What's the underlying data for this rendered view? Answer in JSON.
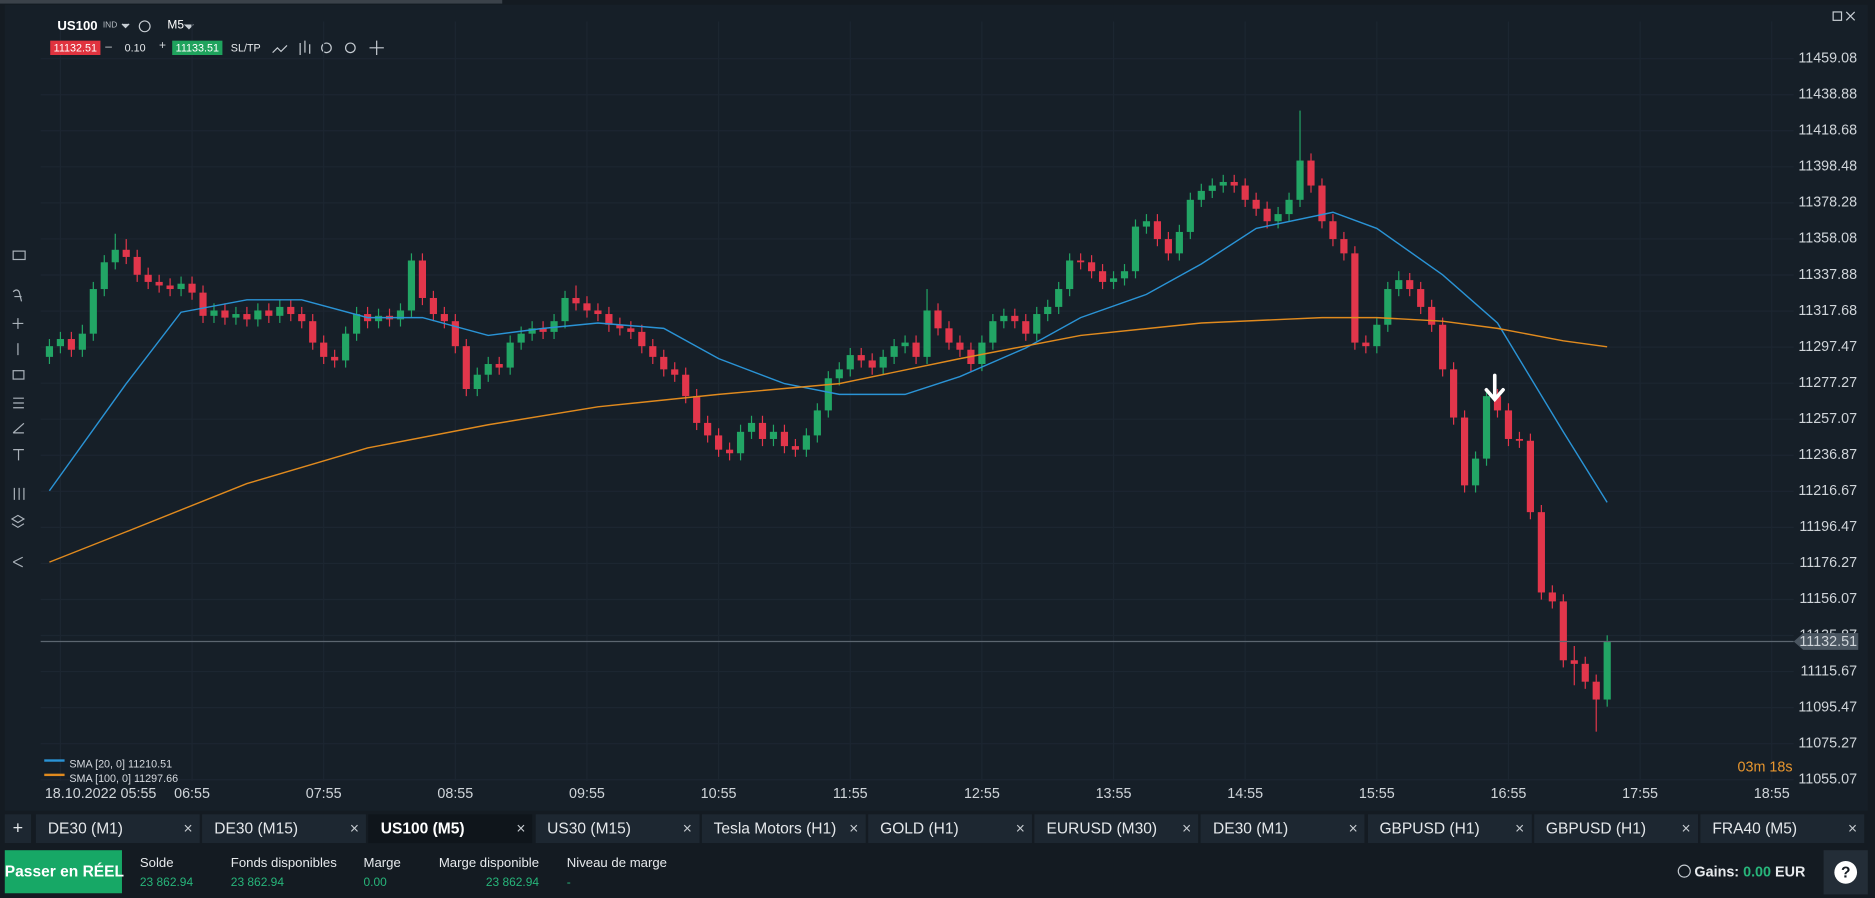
{
  "header": {
    "instrument": "US100",
    "instrument_type": "IND",
    "timeframe": "M5",
    "bid": "11132.51",
    "minus": "–",
    "lot": "0.10",
    "plus": "+",
    "ask": "11133.51",
    "sl_tp": "SL/TP"
  },
  "chart_data": {
    "type": "candlestick",
    "up_color": "#22a565",
    "down_color": "#e2364b",
    "x": [
      -5,
      0,
      5,
      10,
      15,
      20,
      25,
      30,
      35,
      40,
      45,
      50,
      55,
      60,
      65,
      70,
      75,
      80,
      85,
      90,
      95,
      100,
      105,
      110,
      115,
      120,
      125,
      130,
      135,
      140,
      145,
      150,
      155,
      160,
      165,
      170,
      175,
      180,
      185,
      190,
      195,
      200,
      205,
      210,
      215,
      220,
      225,
      230,
      235,
      240,
      245,
      250,
      255,
      260,
      265,
      270,
      275,
      280,
      285,
      290,
      295,
      300,
      305,
      310,
      315,
      320,
      325,
      330,
      335,
      340,
      345,
      350,
      355,
      360,
      365,
      370,
      375,
      380,
      385,
      390,
      395,
      400,
      405,
      410,
      415,
      420,
      425,
      430,
      435,
      440,
      445,
      450,
      455,
      460,
      465,
      470,
      475,
      480,
      485,
      490,
      495,
      500,
      505,
      510,
      515,
      520,
      525,
      530,
      535,
      540,
      545,
      550,
      555,
      560,
      565,
      570,
      575,
      580,
      585,
      590,
      595,
      600,
      605,
      610,
      615,
      620,
      625,
      630,
      635,
      640,
      645,
      650,
      655,
      660,
      665,
      670,
      675,
      680,
      685,
      690,
      695,
      700,
      705
    ],
    "ohlc": [
      [
        11292,
        11302,
        11288,
        11298
      ],
      [
        11298,
        11306,
        11294,
        11302
      ],
      [
        11302,
        11306,
        11292,
        11296
      ],
      [
        11296,
        11310,
        11292,
        11305
      ],
      [
        11305,
        11334,
        11301,
        11330
      ],
      [
        11330,
        11349,
        11326,
        11345
      ],
      [
        11345,
        11361,
        11341,
        11352
      ],
      [
        11352,
        11358,
        11344,
        11348
      ],
      [
        11348,
        11352,
        11334,
        11338
      ],
      [
        11338,
        11342,
        11330,
        11334
      ],
      [
        11334,
        11338,
        11328,
        11332
      ],
      [
        11332,
        11336,
        11326,
        11330
      ],
      [
        11330,
        11337,
        11326,
        11333
      ],
      [
        11333,
        11337,
        11324,
        11328
      ],
      [
        11328,
        11332,
        11311,
        11315
      ],
      [
        11315,
        11322,
        11311,
        11318
      ],
      [
        11318,
        11322,
        11310,
        11314
      ],
      [
        11314,
        11320,
        11310,
        11316
      ],
      [
        11316,
        11320,
        11309,
        11313
      ],
      [
        11313,
        11322,
        11309,
        11318
      ],
      [
        11318,
        11322,
        11311,
        11315
      ],
      [
        11315,
        11324,
        11311,
        11320
      ],
      [
        11320,
        11324,
        11312,
        11316
      ],
      [
        11316,
        11320,
        11308,
        11312
      ],
      [
        11312,
        11316,
        11296,
        11300
      ],
      [
        11300,
        11304,
        11288,
        11292
      ],
      [
        11292,
        11296,
        11286,
        11290
      ],
      [
        11290,
        11309,
        11286,
        11305
      ],
      [
        11305,
        11320,
        11301,
        11316
      ],
      [
        11316,
        11320,
        11308,
        11312
      ],
      [
        11312,
        11319,
        11308,
        11315
      ],
      [
        11315,
        11319,
        11309,
        11313
      ],
      [
        11313,
        11322,
        11309,
        11318
      ],
      [
        11318,
        11350,
        11314,
        11346
      ],
      [
        11346,
        11350,
        11321,
        11325
      ],
      [
        11325,
        11329,
        11312,
        11316
      ],
      [
        11316,
        11320,
        11308,
        11312
      ],
      [
        11312,
        11316,
        11294,
        11298
      ],
      [
        11298,
        11302,
        11270,
        11274
      ],
      [
        11274,
        11286,
        11270,
        11282
      ],
      [
        11282,
        11292,
        11278,
        11288
      ],
      [
        11288,
        11292,
        11282,
        11286
      ],
      [
        11286,
        11304,
        11282,
        11300
      ],
      [
        11300,
        11309,
        11296,
        11305
      ],
      [
        11305,
        11312,
        11301,
        11308
      ],
      [
        11308,
        11312,
        11302,
        11306
      ],
      [
        11306,
        11316,
        11302,
        11312
      ],
      [
        11312,
        11329,
        11308,
        11325
      ],
      [
        11325,
        11332,
        11318,
        11322
      ],
      [
        11322,
        11326,
        11314,
        11318
      ],
      [
        11318,
        11322,
        11312,
        11316
      ],
      [
        11316,
        11320,
        11306,
        11310
      ],
      [
        11310,
        11314,
        11304,
        11308
      ],
      [
        11308,
        11312,
        11302,
        11306
      ],
      [
        11306,
        11310,
        11294,
        11298
      ],
      [
        11298,
        11302,
        11288,
        11292
      ],
      [
        11292,
        11296,
        11281,
        11285
      ],
      [
        11285,
        11289,
        11278,
        11282
      ],
      [
        11282,
        11286,
        11266,
        11270
      ],
      [
        11270,
        11274,
        11251,
        11255
      ],
      [
        11255,
        11259,
        11244,
        11248
      ],
      [
        11248,
        11252,
        11236,
        11240
      ],
      [
        11240,
        11244,
        11234,
        11238
      ],
      [
        11238,
        11254,
        11234,
        11250
      ],
      [
        11250,
        11259,
        11246,
        11255
      ],
      [
        11255,
        11259,
        11242,
        11246
      ],
      [
        11246,
        11254,
        11242,
        11250
      ],
      [
        11250,
        11254,
        11238,
        11242
      ],
      [
        11242,
        11246,
        11236,
        11240
      ],
      [
        11240,
        11252,
        11236,
        11248
      ],
      [
        11248,
        11266,
        11244,
        11262
      ],
      [
        11262,
        11284,
        11258,
        11280
      ],
      [
        11280,
        11289,
        11276,
        11285
      ],
      [
        11285,
        11297,
        11281,
        11293
      ],
      [
        11293,
        11297,
        11286,
        11290
      ],
      [
        11290,
        11294,
        11282,
        11286
      ],
      [
        11286,
        11296,
        11282,
        11292
      ],
      [
        11292,
        11302,
        11288,
        11298
      ],
      [
        11298,
        11304,
        11294,
        11300
      ],
      [
        11300,
        11304,
        11288,
        11292
      ],
      [
        11292,
        11330,
        11288,
        11318
      ],
      [
        11318,
        11322,
        11304,
        11308
      ],
      [
        11308,
        11312,
        11296,
        11300
      ],
      [
        11300,
        11304,
        11292,
        11296
      ],
      [
        11296,
        11300,
        11284,
        11288
      ],
      [
        11288,
        11304,
        11284,
        11300
      ],
      [
        11300,
        11316,
        11296,
        11312
      ],
      [
        11312,
        11319,
        11308,
        11315
      ],
      [
        11315,
        11319,
        11308,
        11312
      ],
      [
        11312,
        11316,
        11301,
        11305
      ],
      [
        11305,
        11320,
        11301,
        11316
      ],
      [
        11316,
        11324,
        11312,
        11320
      ],
      [
        11320,
        11334,
        11316,
        11330
      ],
      [
        11330,
        11350,
        11326,
        11346
      ],
      [
        11346,
        11350,
        11341,
        11345
      ],
      [
        11345,
        11349,
        11336,
        11340
      ],
      [
        11340,
        11344,
        11330,
        11334
      ],
      [
        11334,
        11340,
        11330,
        11336
      ],
      [
        11336,
        11344,
        11332,
        11340
      ],
      [
        11340,
        11369,
        11336,
        11365
      ],
      [
        11365,
        11372,
        11361,
        11368
      ],
      [
        11368,
        11372,
        11354,
        11358
      ],
      [
        11358,
        11362,
        11346,
        11350
      ],
      [
        11350,
        11366,
        11346,
        11362
      ],
      [
        11362,
        11384,
        11358,
        11380
      ],
      [
        11380,
        11389,
        11376,
        11385
      ],
      [
        11385,
        11392,
        11381,
        11388
      ],
      [
        11388,
        11394,
        11384,
        11390
      ],
      [
        11390,
        11394,
        11384,
        11388
      ],
      [
        11388,
        11392,
        11376,
        11380
      ],
      [
        11380,
        11384,
        11371,
        11375
      ],
      [
        11375,
        11379,
        11364,
        11368
      ],
      [
        11368,
        11376,
        11364,
        11372
      ],
      [
        11372,
        11384,
        11368,
        11380
      ],
      [
        11380,
        11430,
        11376,
        11402
      ],
      [
        11402,
        11406,
        11384,
        11388
      ],
      [
        11388,
        11392,
        11364,
        11368
      ],
      [
        11368,
        11372,
        11354,
        11358
      ],
      [
        11358,
        11362,
        11346,
        11350
      ],
      [
        11350,
        11354,
        11296,
        11300
      ],
      [
        11300,
        11304,
        11294,
        11298
      ],
      [
        11298,
        11314,
        11294,
        11310
      ],
      [
        11310,
        11334,
        11306,
        11330
      ],
      [
        11330,
        11340,
        11326,
        11335
      ],
      [
        11335,
        11339,
        11326,
        11330
      ],
      [
        11330,
        11334,
        11316,
        11320
      ],
      [
        11320,
        11324,
        11306,
        11310
      ],
      [
        11310,
        11314,
        11281,
        11285
      ],
      [
        11285,
        11289,
        11254,
        11258
      ],
      [
        11258,
        11262,
        11216,
        11220
      ],
      [
        11220,
        11239,
        11216,
        11235
      ],
      [
        11235,
        11274,
        11231,
        11270
      ],
      [
        11270,
        11274,
        11258,
        11262
      ],
      [
        11262,
        11266,
        11242,
        11246
      ],
      [
        11246,
        11250,
        11241,
        11245
      ],
      [
        11245,
        11249,
        11201,
        11205
      ],
      [
        11205,
        11209,
        11156,
        11160
      ],
      [
        11160,
        11164,
        11151,
        11155
      ],
      [
        11155,
        11159,
        11118,
        11122
      ],
      [
        11122,
        11130,
        11108,
        11120
      ],
      [
        11120,
        11124,
        11106,
        11110
      ],
      [
        11110,
        11114,
        11082,
        11100
      ],
      [
        11100,
        11136,
        11096,
        11132.51
      ]
    ],
    "series": [
      {
        "name": "SMA [20, 0]",
        "color": "#2a93d5",
        "x": [
          -5,
          30,
          55,
          85,
          110,
          140,
          165,
          195,
          220,
          245,
          275,
          300,
          330,
          355,
          385,
          410,
          440,
          465,
          495,
          520,
          545,
          580,
          600,
          630,
          655,
          685,
          705
        ],
        "values": [
          11217,
          11277,
          11317,
          11324,
          11324,
          11314,
          11314,
          11304,
          11308,
          11311,
          11308,
          11291,
          11277,
          11271,
          11271,
          11281,
          11297,
          11314,
          11327,
          11344,
          11364,
          11373,
          11364,
          11338,
          11311,
          11250,
          11210.51
        ]
      },
      {
        "name": "SMA [100, 0]",
        "color": "#e08a1e",
        "x": [
          -5,
          30,
          85,
          140,
          195,
          245,
          300,
          355,
          410,
          465,
          520,
          575,
          600,
          630,
          655,
          685,
          705
        ],
        "values": [
          11177,
          11194,
          11221,
          11241,
          11254,
          11264,
          11271,
          11277,
          11291,
          11304,
          11311,
          11314,
          11314,
          11312,
          11308,
          11301,
          11297.66
        ]
      }
    ],
    "xlim": [
      -9,
      790
    ],
    "xticks": [
      {
        "value": 0,
        "label": "18.10.2022 05:55"
      },
      {
        "value": 60,
        "label": "06:55"
      },
      {
        "value": 120,
        "label": "07:55"
      },
      {
        "value": 180,
        "label": "08:55"
      },
      {
        "value": 240,
        "label": "09:55"
      },
      {
        "value": 300,
        "label": "10:55"
      },
      {
        "value": 360,
        "label": "11:55"
      },
      {
        "value": 420,
        "label": "12:55"
      },
      {
        "value": 480,
        "label": "13:55"
      },
      {
        "value": 540,
        "label": "14:55"
      },
      {
        "value": 600,
        "label": "15:55"
      },
      {
        "value": 660,
        "label": "16:55"
      },
      {
        "value": 720,
        "label": "17:55"
      },
      {
        "value": 780,
        "label": "18:55"
      }
    ],
    "ylim": [
      11039.7,
      11479.9
    ],
    "yticks": [
      11055.07,
      11075.27,
      11095.47,
      11115.67,
      11135.87,
      11156.07,
      11176.27,
      11196.47,
      11216.67,
      11236.87,
      11257.07,
      11277.27,
      11297.47,
      11317.68,
      11337.88,
      11358.08,
      11378.28,
      11398.48,
      11418.68,
      11438.88,
      11459.08
    ],
    "grid": true
  },
  "countdown": "03m 18s",
  "tabs": {
    "add": "+",
    "close": "×",
    "active": 2,
    "items": [
      "DE30 (M1)",
      "DE30 (M15)",
      "US100 (M5)",
      "US30 (M15)",
      "Tesla Motors (H1)",
      "GOLD (H1)",
      "EURUSD (M30)",
      "DE30 (M1)",
      "GBPUSD (H1)",
      "GBPUSD (H1)",
      "FRA40 (M5)"
    ]
  },
  "account": {
    "cta": "Passer en RÉEL",
    "fields": [
      {
        "label": "Solde",
        "value": "23 862.94"
      },
      {
        "label": "Fonds disponibles",
        "value": "23 862.94"
      },
      {
        "label": "Marge",
        "value": "0.00"
      },
      {
        "label": "Marge disponible",
        "value": "23 862.94"
      },
      {
        "label": "Niveau de marge",
        "value": "-"
      }
    ],
    "gains_label": "Gains:",
    "gains_value": "0.00",
    "currency": "EUR",
    "help": "?"
  }
}
